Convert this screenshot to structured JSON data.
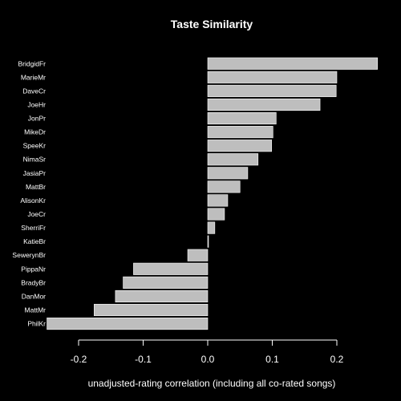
{
  "chart_data": {
    "type": "bar",
    "orientation": "horizontal",
    "title": "Taste Similarity",
    "xlabel": "unadjusted-rating correlation (including all co-rated songs)",
    "ylabel": "",
    "categories": [
      "BridgidFr",
      "MarieMr",
      "DaveCr",
      "JoeHr",
      "JonPr",
      "MikeDr",
      "SpeeKr",
      "NimaSr",
      "JasiaPr",
      "MattBr",
      "AlisonKr",
      "JoeCr",
      "SherriFr",
      "KatieBr",
      "SewerynBr",
      "PippaNr",
      "BradyBr",
      "DanMor",
      "MattMr",
      "PhilKr"
    ],
    "values": [
      0.263,
      0.2,
      0.199,
      0.174,
      0.106,
      0.101,
      0.099,
      0.078,
      0.062,
      0.05,
      0.031,
      0.026,
      0.011,
      0.001,
      -0.031,
      -0.115,
      -0.131,
      -0.143,
      -0.176,
      -0.249
    ],
    "xlim": [
      -0.25,
      0.27
    ],
    "xticks": [
      "-0.2",
      "-0.1",
      "0.0",
      "0.1",
      "0.2"
    ],
    "xtick_values": [
      -0.2,
      -0.1,
      0.0,
      0.1,
      0.2
    ],
    "grid": false,
    "colors": {
      "background": "#000000",
      "bar_fill": "#bebebe",
      "bar_border": "#ffffff",
      "text": "#ffffff"
    }
  }
}
